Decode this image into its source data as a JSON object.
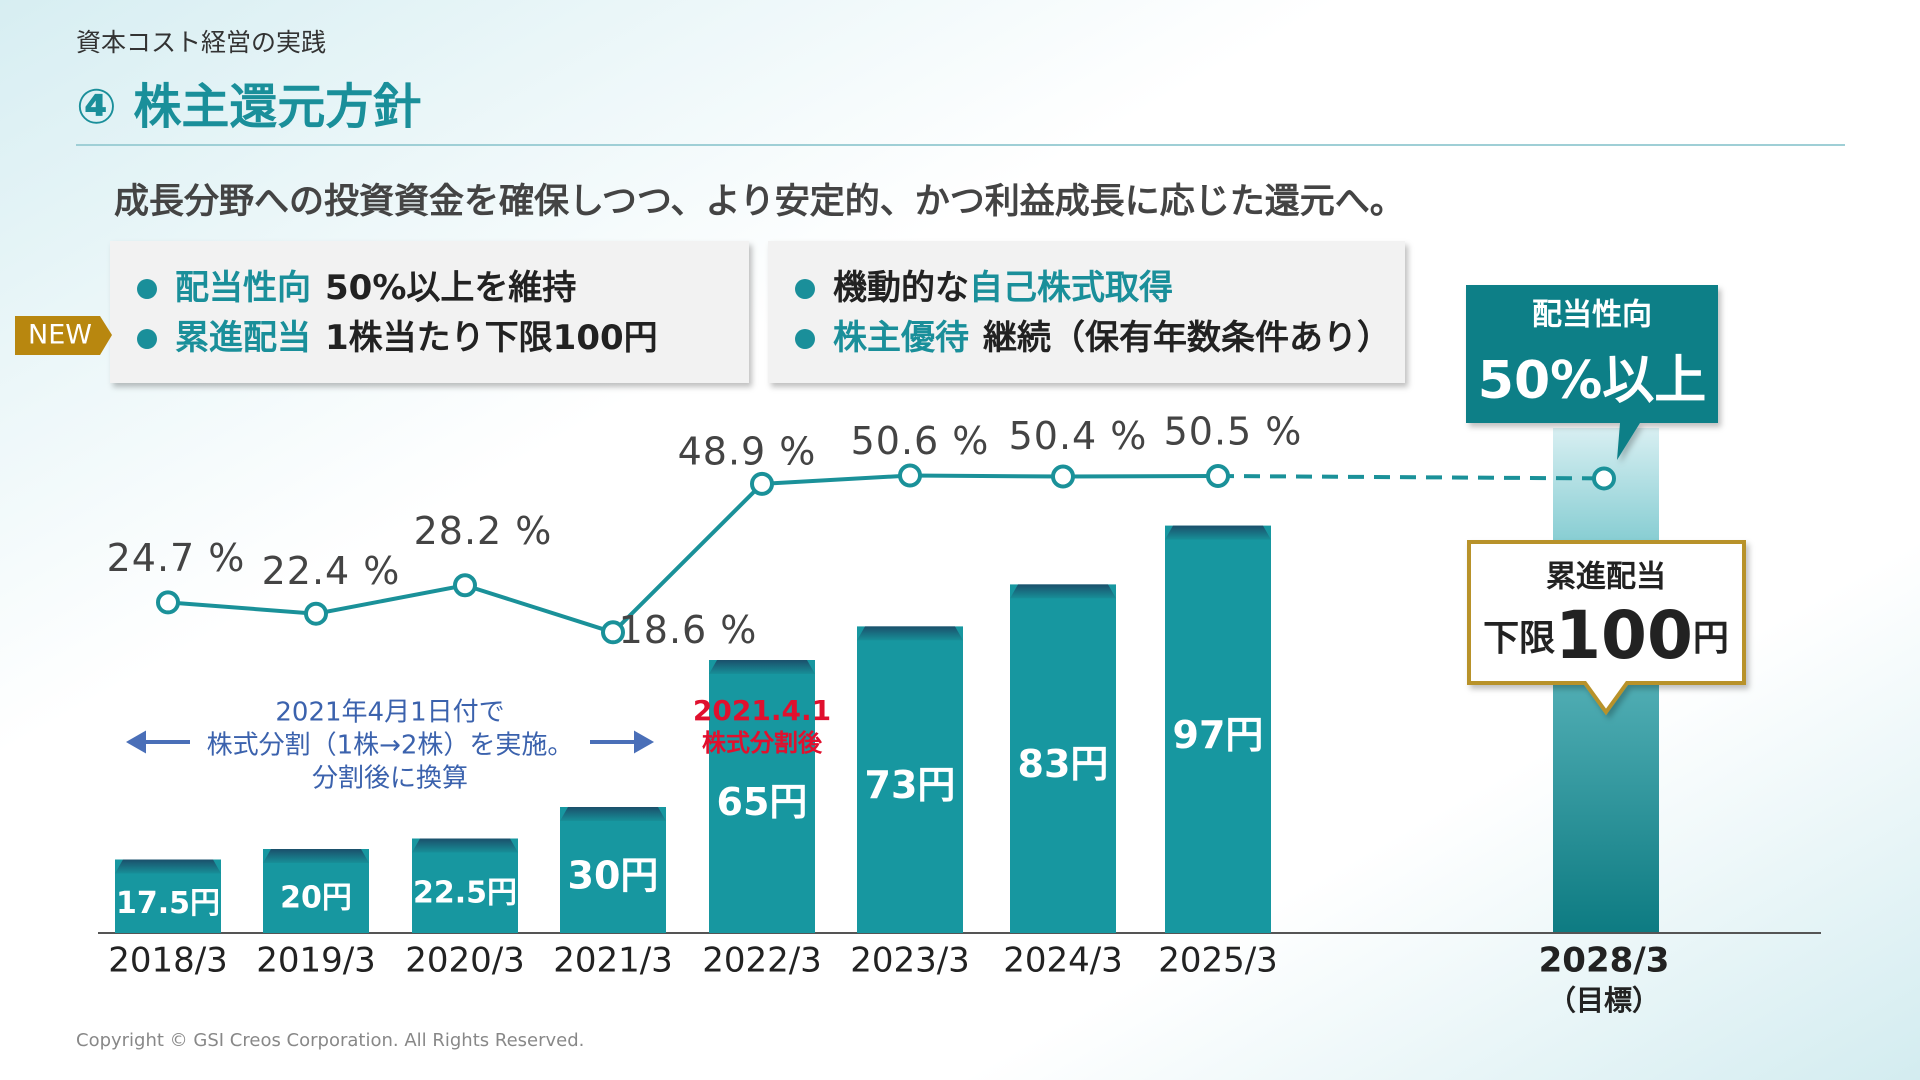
{
  "header": {
    "section": "資本コスト経営の実践",
    "title": "④ 株主還元方針",
    "subtitle": "成長分野への投資資金を確保しつつ、より安定的、かつ利益成長に応じた還元へ。"
  },
  "policy_left": {
    "badge": "NEW",
    "items": [
      {
        "key": "配当性向",
        "rest": "50%以上を維持"
      },
      {
        "key": "累進配当",
        "rest": "1株当たり下限100円"
      }
    ]
  },
  "policy_right": {
    "items": [
      {
        "pre": "機動的な",
        "key": "自己株式取得"
      },
      {
        "key": "株主優待",
        "rest": "継続（保有年数条件あり）"
      }
    ]
  },
  "chart_data": {
    "type": "bar-line",
    "categories": [
      "2018/3",
      "2019/3",
      "2020/3",
      "2021/3",
      "2022/3",
      "2023/3",
      "2024/3",
      "2025/3",
      "2028/3"
    ],
    "category_note": "（目標）",
    "series": [
      {
        "color": "#1797a0",
        "values": [
          17.5,
          20,
          22.5,
          30,
          65,
          73,
          83,
          97,
          null
        ],
        "value_labels": [
          "17.5円",
          "20円",
          "22.5円",
          "30円",
          "65円",
          "73円",
          "83円",
          "97円",
          null
        ]
      },
      {
        "color": "#1a9199",
        "axis": "y2",
        "values": [
          24.7,
          22.4,
          28.2,
          18.6,
          48.9,
          50.6,
          50.4,
          50.5,
          50
        ],
        "value_labels": [
          "24.7 %",
          "22.4 %",
          "28.2 %",
          "18.6 %",
          "48.9 %",
          "50.6 %",
          "50.4 %",
          "50.5 %",
          "50%以上"
        ]
      }
    ],
    "payout_callout_title": "配当性向",
    "dividend_callout": {
      "title": "累進配当",
      "prefix": "下限",
      "value": 100,
      "unit": "円"
    },
    "split_note": [
      "2021年4月1日付で",
      "株式分割（1株→2株）を実施。",
      "分割後に換算"
    ],
    "split_mark": [
      "2021.4.1",
      "株式分割後"
    ]
  },
  "footer": {
    "copyright": "Copyright © GSI Creos Corporation. All Rights Reserved."
  }
}
